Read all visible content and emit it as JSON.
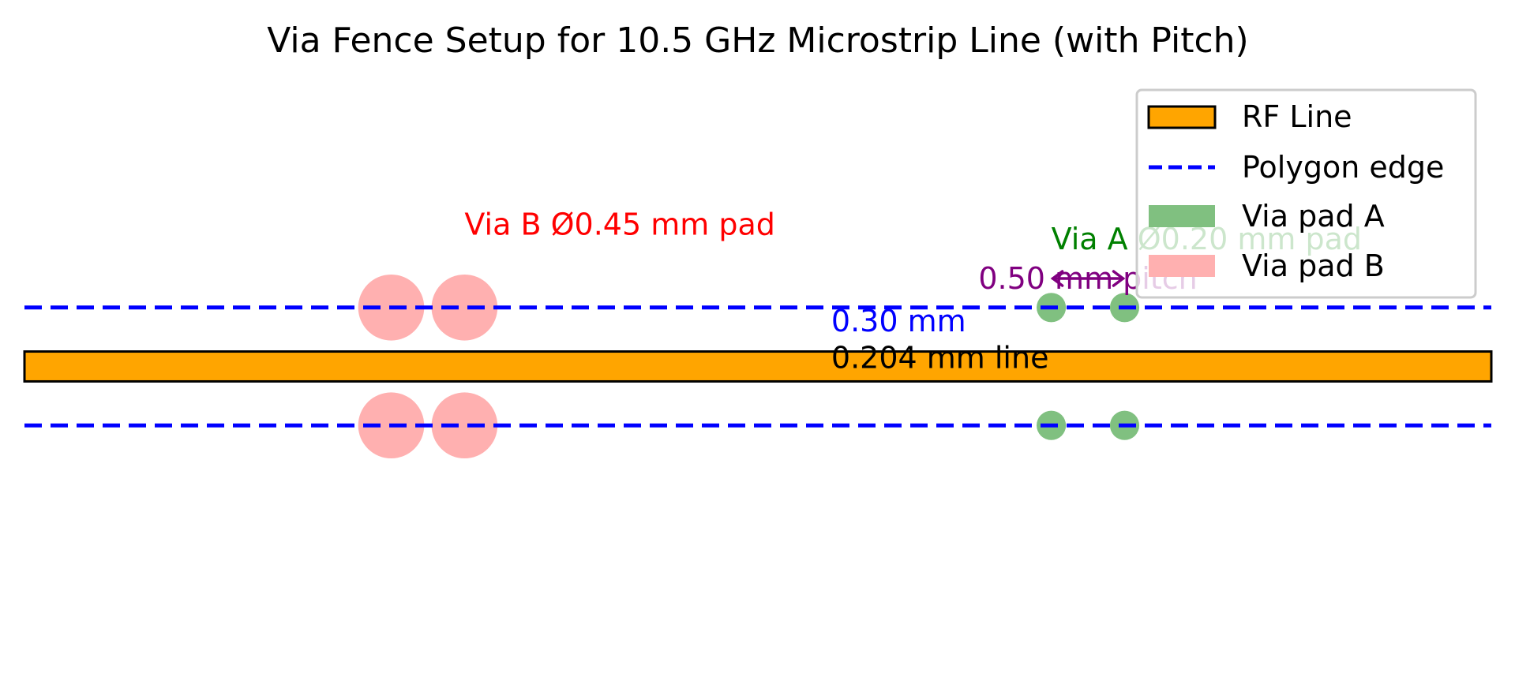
{
  "title": "Via Fence Setup for 10.5 GHz Microstrip Line (with Pitch)",
  "units": "mm",
  "rf_line": {
    "x_start": 0,
    "x_end": 10,
    "width": 0.204,
    "color": "#ffa500",
    "edge_color": "#000000"
  },
  "polygon_edges": {
    "offsets": [
      0.402,
      -0.402
    ],
    "color": "#0000ff",
    "style": "dashed"
  },
  "via_pads_a": {
    "diameter": 0.2,
    "x": [
      7.0,
      7.5
    ],
    "y": [
      0.402,
      -0.402
    ],
    "color": "#80c080"
  },
  "via_pads_b": {
    "diameter": 0.45,
    "x": [
      2.5,
      3.0
    ],
    "y": [
      0.402,
      -0.402
    ],
    "color": "#ffb0b0"
  },
  "pitch_arrow": {
    "x_from": 7.0,
    "x_to": 7.5,
    "y": 0.6,
    "color": "#800080"
  },
  "annotations": [
    {
      "text": "Via B Ø0.45 mm pad",
      "x": 3.0,
      "y": 0.9,
      "anchor": "start",
      "color": "#ff0000"
    },
    {
      "text": "Via A Ø0.20 mm pad",
      "x": 7.0,
      "y": 0.8,
      "anchor": "start",
      "color": "#008000"
    },
    {
      "text": "0.50 mm pitch",
      "x": 7.25,
      "y": 0.53,
      "anchor": "middle",
      "color": "#800080"
    },
    {
      "text": "0.30 mm",
      "x": 5.5,
      "y": 0.24,
      "anchor": "start",
      "color": "#0000ff"
    },
    {
      "text": "0.204 mm line",
      "x": 5.5,
      "y": -0.01,
      "anchor": "start",
      "color": "#000000"
    }
  ],
  "legend": {
    "placement": "top-right",
    "items": [
      {
        "label": "RF Line",
        "kind": "patch-edge",
        "color": "#ffa500"
      },
      {
        "label": "Polygon edge",
        "kind": "dashed-line",
        "color": "#0000ff"
      },
      {
        "label": "Via pad A",
        "kind": "patch",
        "color": "#80c080"
      },
      {
        "label": "Via pad B",
        "kind": "patch",
        "color": "#ffb0b0"
      }
    ]
  }
}
